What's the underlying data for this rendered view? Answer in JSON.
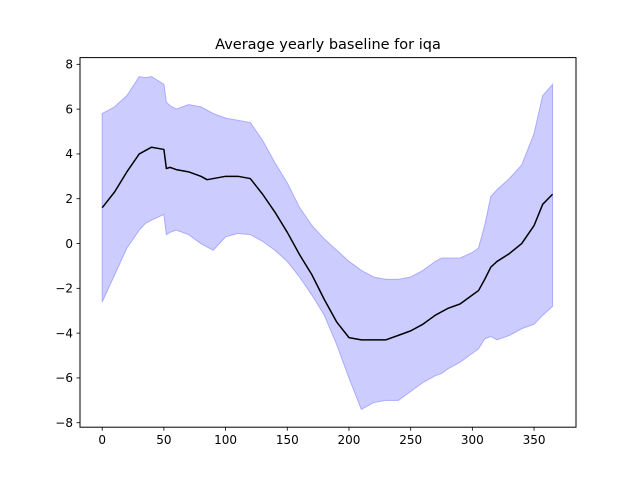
{
  "chart_data": {
    "type": "area",
    "title": "Average yearly baseline for iqa",
    "xlabel": "",
    "ylabel": "",
    "xlim": [
      -18,
      384
    ],
    "ylim": [
      -8.2,
      8.3
    ],
    "xticks": [
      0,
      50,
      100,
      150,
      200,
      250,
      300,
      350
    ],
    "yticks": [
      -8,
      -6,
      -4,
      -2,
      0,
      2,
      4,
      6,
      8
    ],
    "grid": false,
    "colors": {
      "line": "#000000",
      "band_fill": "#ccccff",
      "band_edge": "#aaaaff"
    },
    "series": [
      {
        "kind": "line",
        "x": [
          0,
          10,
          20,
          30,
          40,
          50,
          52,
          55,
          60,
          70,
          80,
          85,
          90,
          100,
          110,
          120,
          130,
          140,
          150,
          160,
          170,
          180,
          190,
          200,
          210,
          220,
          230,
          240,
          250,
          260,
          270,
          280,
          290,
          300,
          305,
          310,
          315,
          320,
          330,
          340,
          350,
          357,
          365
        ],
        "y": [
          1.6,
          2.3,
          3.2,
          4.0,
          4.3,
          4.2,
          3.35,
          3.4,
          3.3,
          3.2,
          3.0,
          2.85,
          2.9,
          3.0,
          3.0,
          2.9,
          2.2,
          1.4,
          0.5,
          -0.5,
          -1.4,
          -2.5,
          -3.5,
          -4.2,
          -4.3,
          -4.3,
          -4.3,
          -4.1,
          -3.9,
          -3.6,
          -3.2,
          -2.9,
          -2.7,
          -2.3,
          -2.1,
          -1.6,
          -1.05,
          -0.8,
          -0.45,
          0.0,
          0.8,
          1.75,
          2.2
        ]
      },
      {
        "kind": "band",
        "x": [
          0,
          10,
          20,
          30,
          35,
          40,
          50,
          52,
          55,
          60,
          70,
          80,
          90,
          100,
          110,
          120,
          130,
          140,
          150,
          160,
          170,
          180,
          190,
          200,
          210,
          220,
          230,
          240,
          250,
          260,
          270,
          275,
          280,
          290,
          300,
          305,
          310,
          315,
          320,
          330,
          340,
          350,
          357,
          365
        ],
        "upper": [
          5.8,
          6.1,
          6.6,
          7.45,
          7.4,
          7.45,
          7.1,
          6.3,
          6.15,
          6.0,
          6.2,
          6.1,
          5.8,
          5.6,
          5.5,
          5.4,
          4.6,
          3.6,
          2.7,
          1.6,
          0.8,
          0.2,
          -0.3,
          -0.8,
          -1.2,
          -1.5,
          -1.6,
          -1.6,
          -1.5,
          -1.2,
          -0.8,
          -0.65,
          -0.65,
          -0.65,
          -0.4,
          -0.2,
          0.8,
          2.1,
          2.4,
          2.9,
          3.5,
          4.9,
          6.6,
          7.1
        ],
        "lower": [
          -2.6,
          -1.4,
          -0.2,
          0.6,
          0.9,
          1.05,
          1.3,
          0.4,
          0.5,
          0.6,
          0.4,
          0.0,
          -0.3,
          0.3,
          0.45,
          0.4,
          0.1,
          -0.3,
          -0.8,
          -1.5,
          -2.3,
          -3.2,
          -4.5,
          -6.0,
          -7.4,
          -7.1,
          -7.0,
          -7.0,
          -6.6,
          -6.2,
          -5.9,
          -5.8,
          -5.6,
          -5.3,
          -4.9,
          -4.7,
          -4.25,
          -4.15,
          -4.3,
          -4.1,
          -3.8,
          -3.6,
          -3.2,
          -2.8
        ]
      }
    ]
  }
}
